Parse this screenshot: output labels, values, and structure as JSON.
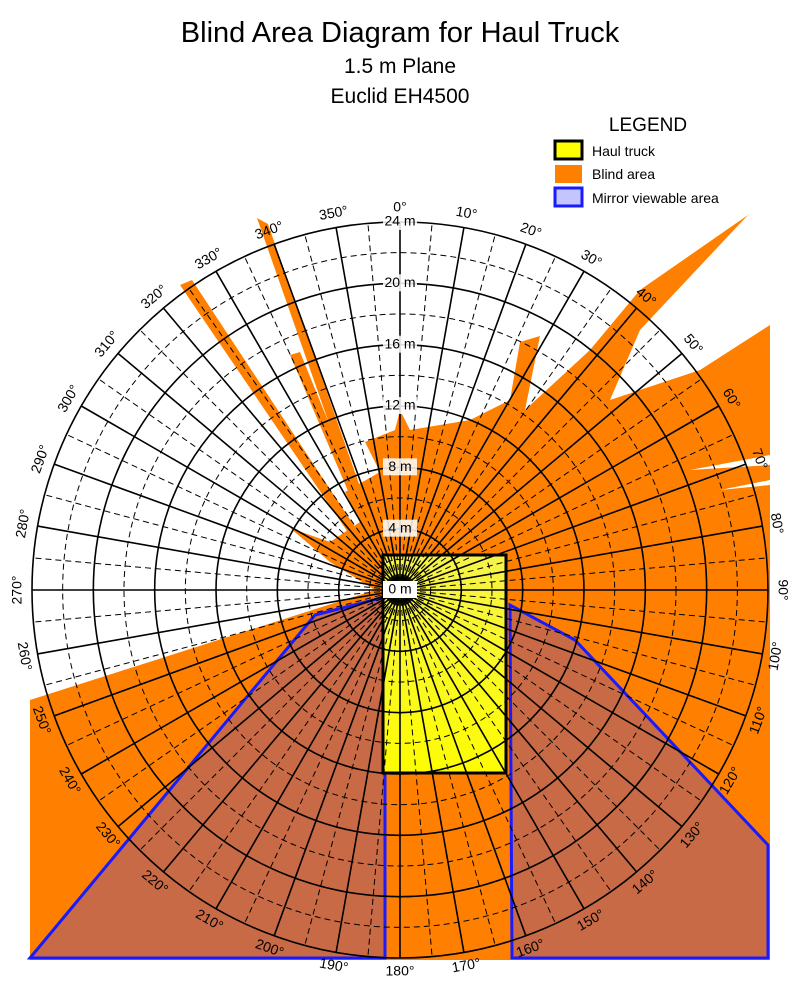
{
  "header": {
    "title": "Blind Area Diagram for Haul Truck",
    "subtitle": "1.5 m Plane",
    "model": "Euclid EH4500"
  },
  "legend": {
    "title": "LEGEND",
    "items": [
      "Haul truck",
      "Blind area",
      "Mirror viewable area"
    ]
  },
  "angle_labels": [
    "0°",
    "10°",
    "20°",
    "30°",
    "40°",
    "50°",
    "60°",
    "70°",
    "80°",
    "90°",
    "100°",
    "110°",
    "120°",
    "130°",
    "140°",
    "150°",
    "160°",
    "170°",
    "180°",
    "190°",
    "200°",
    "210°",
    "220°",
    "230°",
    "240°",
    "250°",
    "260°",
    "270°",
    "280°",
    "290°",
    "300°",
    "310°",
    "320°",
    "330°",
    "340°",
    "350°"
  ],
  "radius_labels": [
    "0 m",
    "4 m",
    "8 m",
    "12 m",
    "16 m",
    "20 m",
    "24 m"
  ]
}
